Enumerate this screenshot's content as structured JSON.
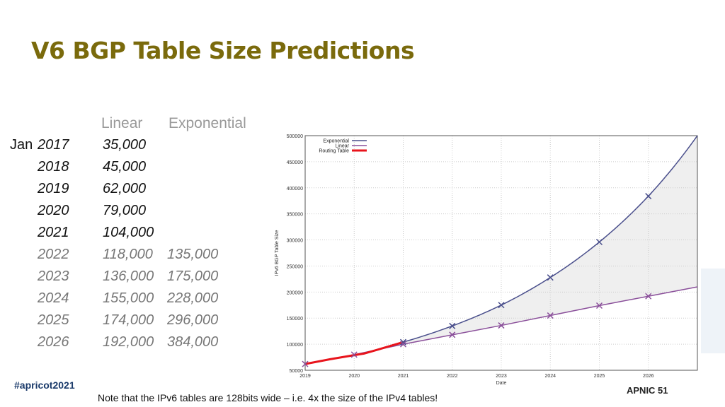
{
  "title": "V6 BGP Table Size Predictions",
  "table": {
    "headers": {
      "linear": "Linear",
      "exponential": "Exponential"
    },
    "month_prefix": "Jan",
    "rows": [
      {
        "year": "2017",
        "linear": "35,000",
        "exponential": "",
        "projected": false
      },
      {
        "year": "2018",
        "linear": "45,000",
        "exponential": "",
        "projected": false
      },
      {
        "year": "2019",
        "linear": "62,000",
        "exponential": "",
        "projected": false
      },
      {
        "year": "2020",
        "linear": "79,000",
        "exponential": "",
        "projected": false
      },
      {
        "year": "2021",
        "linear": "104,000",
        "exponential": "",
        "projected": false
      },
      {
        "year": "2022",
        "linear": "118,000",
        "exponential": "135,000",
        "projected": true
      },
      {
        "year": "2023",
        "linear": "136,000",
        "exponential": "175,000",
        "projected": true
      },
      {
        "year": "2024",
        "linear": "155,000",
        "exponential": "228,000",
        "projected": true
      },
      {
        "year": "2025",
        "linear": "174,000",
        "exponential": "296,000",
        "projected": true
      },
      {
        "year": "2026",
        "linear": "192,000",
        "exponential": "384,000",
        "projected": true
      }
    ]
  },
  "note": "Note that the IPv6 tables are 128bits wide – i.e. 4x the size of the IPv4 tables!",
  "footer": {
    "hashtag": "#apricot2021",
    "logo": "APNIC 51"
  },
  "colors": {
    "title": "#7a6a0c",
    "exponential": "#4a4f8c",
    "linear": "#8a4f9a",
    "routing": "#e8141c"
  },
  "chart_data": {
    "type": "line",
    "xlabel": "Date",
    "ylabel": "IPv6 BGP Table Size",
    "xlim": [
      2019,
      2027
    ],
    "ylim": [
      50000,
      500000
    ],
    "xticks": [
      "2019",
      "2020",
      "2021",
      "2022",
      "2023",
      "2024",
      "2025",
      "2026"
    ],
    "yticks": [
      "50000",
      "100000",
      "150000",
      "200000",
      "250000",
      "300000",
      "350000",
      "400000",
      "450000",
      "500000"
    ],
    "grid": true,
    "legend_position": "top-left",
    "series": [
      {
        "name": "Exponential",
        "x": [
          2021,
          2022,
          2023,
          2024,
          2025,
          2026,
          2027
        ],
        "y": [
          104000,
          135000,
          175000,
          228000,
          296000,
          384000,
          500000
        ],
        "markers": [
          2021,
          2022,
          2023,
          2024,
          2025,
          2026
        ]
      },
      {
        "name": "Linear",
        "x": [
          2019,
          2020,
          2021,
          2022,
          2023,
          2024,
          2025,
          2026,
          2027
        ],
        "y": [
          62000,
          80000,
          100000,
          118000,
          136000,
          155000,
          174000,
          192000,
          210000
        ],
        "markers": [
          2019,
          2020,
          2021,
          2022,
          2023,
          2024,
          2025,
          2026
        ]
      },
      {
        "name": "Routing Table",
        "x": [
          2019,
          2019.5,
          2020,
          2020.2,
          2020.5,
          2021
        ],
        "y": [
          62000,
          71000,
          79000,
          82000,
          90000,
          104000
        ]
      }
    ],
    "shaded_region": "between Linear and Exponential"
  }
}
